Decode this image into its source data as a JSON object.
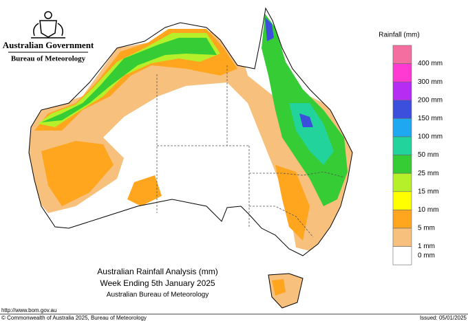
{
  "header": {
    "government": "Australian Government",
    "agency": "Bureau of Meteorology"
  },
  "legend": {
    "title": "Rainfall (mm)",
    "colors": [
      "#f46fa0",
      "#ff3ad2",
      "#b52cf2",
      "#3c4fdc",
      "#1fa8f2",
      "#22d39b",
      "#35cc35",
      "#b6f02a",
      "#ffff00",
      "#ffa51e",
      "#f7c07c",
      "#ffffff"
    ],
    "labels": [
      "400 mm",
      "300 mm",
      "200 mm",
      "150 mm",
      "100 mm",
      "50 mm",
      "25 mm",
      "15 mm",
      "10 mm",
      "5 mm",
      "1 mm",
      "0 mm"
    ]
  },
  "caption": {
    "title": "Australian Rainfall Analysis (mm)",
    "period": "Week Ending 5th January 2025",
    "source": "Australian Bureau of Meteorology"
  },
  "footer": {
    "url": "http://www.bom.gov.au",
    "copyright": "© Commonwealth of Australia 2025, Bureau of Meteorology",
    "issued": "Issued: 05/01/2025"
  }
}
